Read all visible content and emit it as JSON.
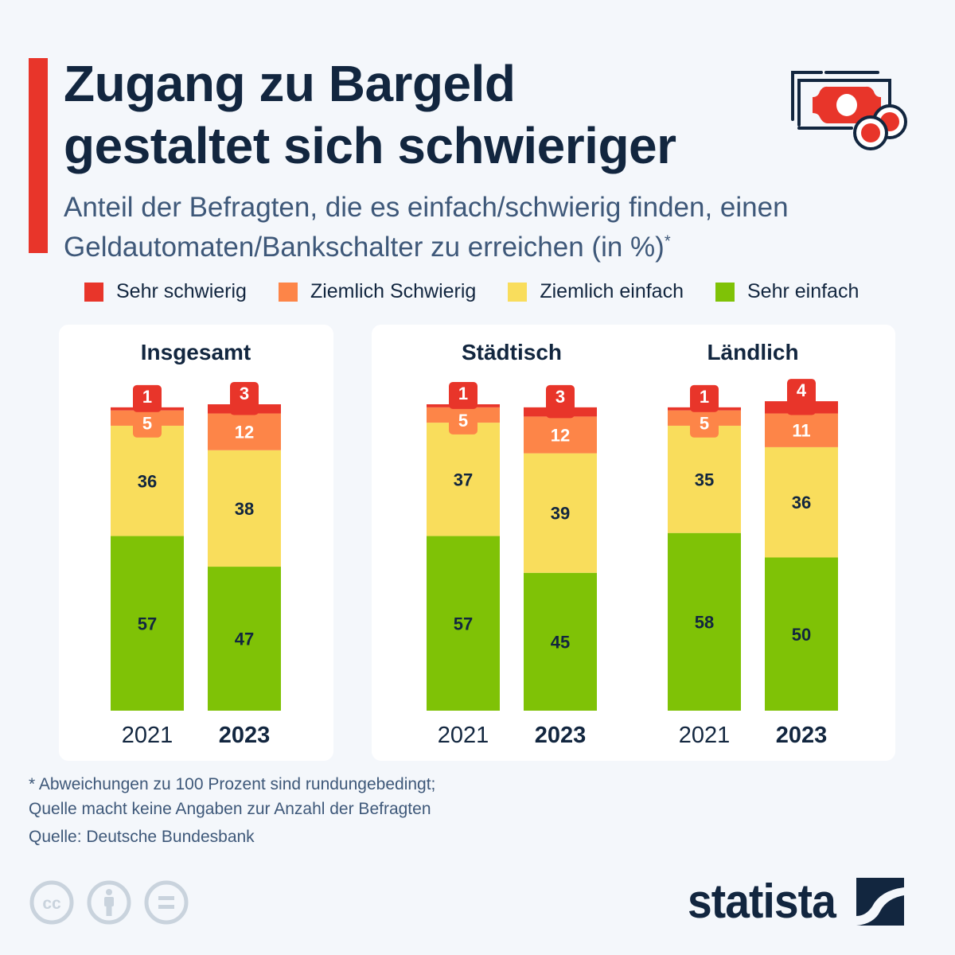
{
  "header": {
    "title_line1": "Zugang zu Bargeld",
    "title_line2": "gestaltet sich schwieriger",
    "subtitle_line1": "Anteil der Befragten, die es einfach/schwierig finden, einen",
    "subtitle_line2": "Geldautomaten/Bankschalter zu erreichen (in %)",
    "subtitle_marker": "*",
    "icon": "money-bills-coins-icon"
  },
  "colors": {
    "sehr_schwierig": "#e8352a",
    "ziemlich_schwierig": "#fd8548",
    "ziemlich_einfach": "#f9dd5c",
    "sehr_einfach": "#7fc206",
    "text_dark": "#12263f",
    "text_light": "#ffffff"
  },
  "chart_data": {
    "type": "bar",
    "stacked": true,
    "title": "Zugang zu Bargeld gestaltet sich schwieriger",
    "subtitle": "Anteil der Befragten, die es einfach/schwierig finden, einen Geldautomaten/Bankschalter zu erreichen (in %)*",
    "unit": "%",
    "ylim": [
      0,
      100
    ],
    "legend": {
      "placement": "top",
      "entries": [
        "Sehr schwierig",
        "Ziemlich Schwierig",
        "Ziemlich einfach",
        "Sehr einfach"
      ]
    },
    "series_order_bottom_to_top": [
      "Sehr einfach",
      "Ziemlich einfach",
      "Ziemlich Schwierig",
      "Sehr schwierig"
    ],
    "groups": [
      {
        "name": "Insgesamt",
        "bars": [
          {
            "year": "2021",
            "highlight": false,
            "values": {
              "Sehr einfach": 57,
              "Ziemlich einfach": 36,
              "Ziemlich Schwierig": 5,
              "Sehr schwierig": 1
            }
          },
          {
            "year": "2023",
            "highlight": true,
            "values": {
              "Sehr einfach": 47,
              "Ziemlich einfach": 38,
              "Ziemlich Schwierig": 12,
              "Sehr schwierig": 3
            }
          }
        ]
      },
      {
        "name": "Städtisch",
        "bars": [
          {
            "year": "2021",
            "highlight": false,
            "values": {
              "Sehr einfach": 57,
              "Ziemlich einfach": 37,
              "Ziemlich Schwierig": 5,
              "Sehr schwierig": 1
            }
          },
          {
            "year": "2023",
            "highlight": true,
            "values": {
              "Sehr einfach": 45,
              "Ziemlich einfach": 39,
              "Ziemlich Schwierig": 12,
              "Sehr schwierig": 3
            }
          }
        ]
      },
      {
        "name": "Ländlich",
        "bars": [
          {
            "year": "2021",
            "highlight": false,
            "values": {
              "Sehr einfach": 58,
              "Ziemlich einfach": 35,
              "Ziemlich Schwierig": 5,
              "Sehr schwierig": 1
            }
          },
          {
            "year": "2023",
            "highlight": true,
            "values": {
              "Sehr einfach": 50,
              "Ziemlich einfach": 36,
              "Ziemlich Schwierig": 11,
              "Sehr schwierig": 4
            }
          }
        ]
      }
    ]
  },
  "footer": {
    "footnote_line1": "* Abweichungen zu 100 Prozent sind rundungebedingt;",
    "footnote_line2": "Quelle macht keine Angaben zur Anzahl der Befragten",
    "source": "Quelle: Deutsche Bundesbank",
    "license_icons": [
      "cc-icon",
      "attribution-icon",
      "no-derivatives-icon"
    ],
    "brand": "statista"
  }
}
